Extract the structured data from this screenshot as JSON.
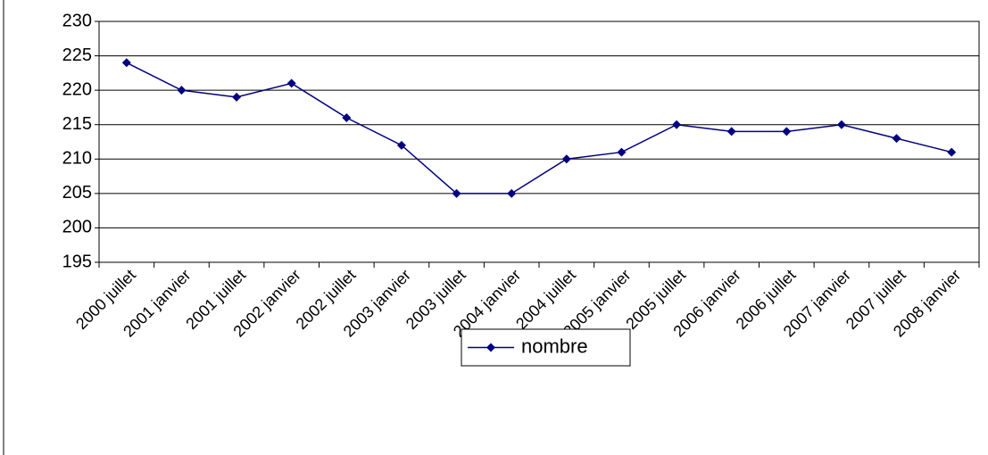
{
  "chart_data": {
    "type": "line",
    "categories": [
      "2000 juillet",
      "2001 janvier",
      "2001 juillet",
      "2002 janvier",
      "2002 juillet",
      "2003 janvier",
      "2003 juillet",
      "2004 janvier",
      "2004 juillet",
      "2005 janvier",
      "2005 juillet",
      "2006 janvier",
      "2006 juillet",
      "2007 janvier",
      "2007 juillet",
      "2008 janvier"
    ],
    "series": [
      {
        "name": "nombre",
        "color": "#000080",
        "values": [
          224,
          220,
          219,
          221,
          216,
          212,
          205,
          205,
          210,
          211,
          215,
          214,
          214,
          215,
          213,
          211
        ]
      }
    ],
    "ylim": [
      195,
      230
    ],
    "yticks": [
      195,
      200,
      205,
      210,
      215,
      220,
      225,
      230
    ],
    "grid": true,
    "legend": "bottom"
  }
}
